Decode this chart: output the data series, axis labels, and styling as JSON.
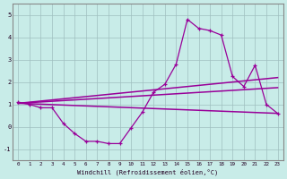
{
  "title": "",
  "xlabel": "Windchill (Refroidissement éolien,°C)",
  "ylabel": "",
  "bg_color": "#c8ece8",
  "grid_color": "#9fbfbf",
  "line_color": "#990099",
  "xlim": [
    -0.5,
    23.5
  ],
  "ylim": [
    -1.5,
    5.5
  ],
  "xticks": [
    0,
    1,
    2,
    3,
    4,
    5,
    6,
    7,
    8,
    9,
    10,
    11,
    12,
    13,
    14,
    15,
    16,
    17,
    18,
    19,
    20,
    21,
    22,
    23
  ],
  "yticks": [
    -1,
    0,
    1,
    2,
    3,
    4,
    5
  ],
  "series1_x": [
    0,
    1,
    2,
    3,
    4,
    5,
    6,
    7,
    8,
    9,
    10,
    11,
    12,
    13,
    14,
    15,
    16,
    17,
    18,
    19,
    20,
    21,
    22,
    23
  ],
  "series1_y": [
    1.1,
    1.0,
    0.85,
    0.85,
    0.15,
    -0.3,
    -0.65,
    -0.65,
    -0.75,
    -0.75,
    -0.05,
    0.65,
    1.55,
    1.9,
    2.8,
    4.8,
    4.4,
    4.3,
    4.1,
    2.25,
    1.8,
    2.75,
    1.0,
    0.6
  ],
  "series2_x": [
    0,
    23
  ],
  "series2_y": [
    1.05,
    2.2
  ],
  "series3_x": [
    0,
    23
  ],
  "series3_y": [
    1.05,
    1.75
  ],
  "series4_x": [
    0,
    23
  ],
  "series4_y": [
    1.05,
    0.6
  ],
  "s1_marker_x": [
    0,
    1,
    2,
    3,
    4,
    5,
    6,
    7,
    8,
    9,
    10,
    11,
    12,
    13,
    14,
    15,
    16,
    17,
    18,
    19,
    20,
    21,
    22,
    23
  ],
  "s1_marker_y": [
    1.1,
    1.0,
    0.85,
    0.85,
    0.15,
    -0.3,
    -0.65,
    -0.65,
    -0.75,
    -0.75,
    -0.05,
    0.65,
    1.55,
    1.9,
    2.8,
    4.8,
    4.4,
    4.3,
    4.1,
    2.25,
    1.8,
    2.75,
    1.0,
    0.6
  ]
}
